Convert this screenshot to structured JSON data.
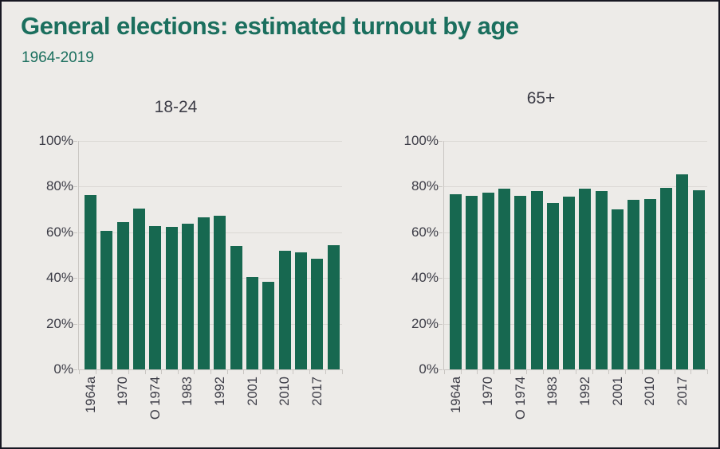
{
  "header": {
    "title": "General elections: estimated turnout by age",
    "subtitle": "1964-2019"
  },
  "colors": {
    "title_green": "#1b6f5e",
    "bar_green": "#176850",
    "axis_text": "#3c3c46",
    "gridline": "#dbd8d4",
    "axis_line": "#c9c6c2",
    "background": "#edebe8",
    "frame_border": "#181823"
  },
  "chart_data": [
    {
      "type": "bar",
      "title": "18-24",
      "ylim": [
        0,
        100
      ],
      "grid": true,
      "legend": "none",
      "y_tick_labels": [
        "100%",
        "80%",
        "60%",
        "40%",
        "20%",
        "0%"
      ],
      "categories": [
        "1964a",
        "",
        "1970",
        "",
        "O 1974",
        "",
        "1983",
        "",
        "1992",
        "",
        "2001",
        "",
        "2010",
        "",
        "2017",
        ""
      ],
      "values": [
        76.4,
        60.5,
        64.6,
        70.4,
        62.6,
        62.5,
        63.9,
        66.6,
        67.3,
        54.1,
        40.4,
        38.2,
        51.8,
        51.4,
        48.5,
        54.5
      ]
    },
    {
      "type": "bar",
      "title": "65+",
      "ylim": [
        0,
        100
      ],
      "grid": true,
      "legend": "none",
      "y_tick_labels": [
        "100%",
        "80%",
        "60%",
        "40%",
        "20%",
        "0%"
      ],
      "categories": [
        "1964a",
        "",
        "1970",
        "",
        "O 1974",
        "",
        "1983",
        "",
        "1992",
        "",
        "2001",
        "",
        "2010",
        "",
        "2017",
        ""
      ],
      "values": [
        76.7,
        75.9,
        77.3,
        79.2,
        75.9,
        77.9,
        72.8,
        75.6,
        79.2,
        77.9,
        70.1,
        74.3,
        74.7,
        79.3,
        85.4,
        78.3
      ]
    }
  ]
}
